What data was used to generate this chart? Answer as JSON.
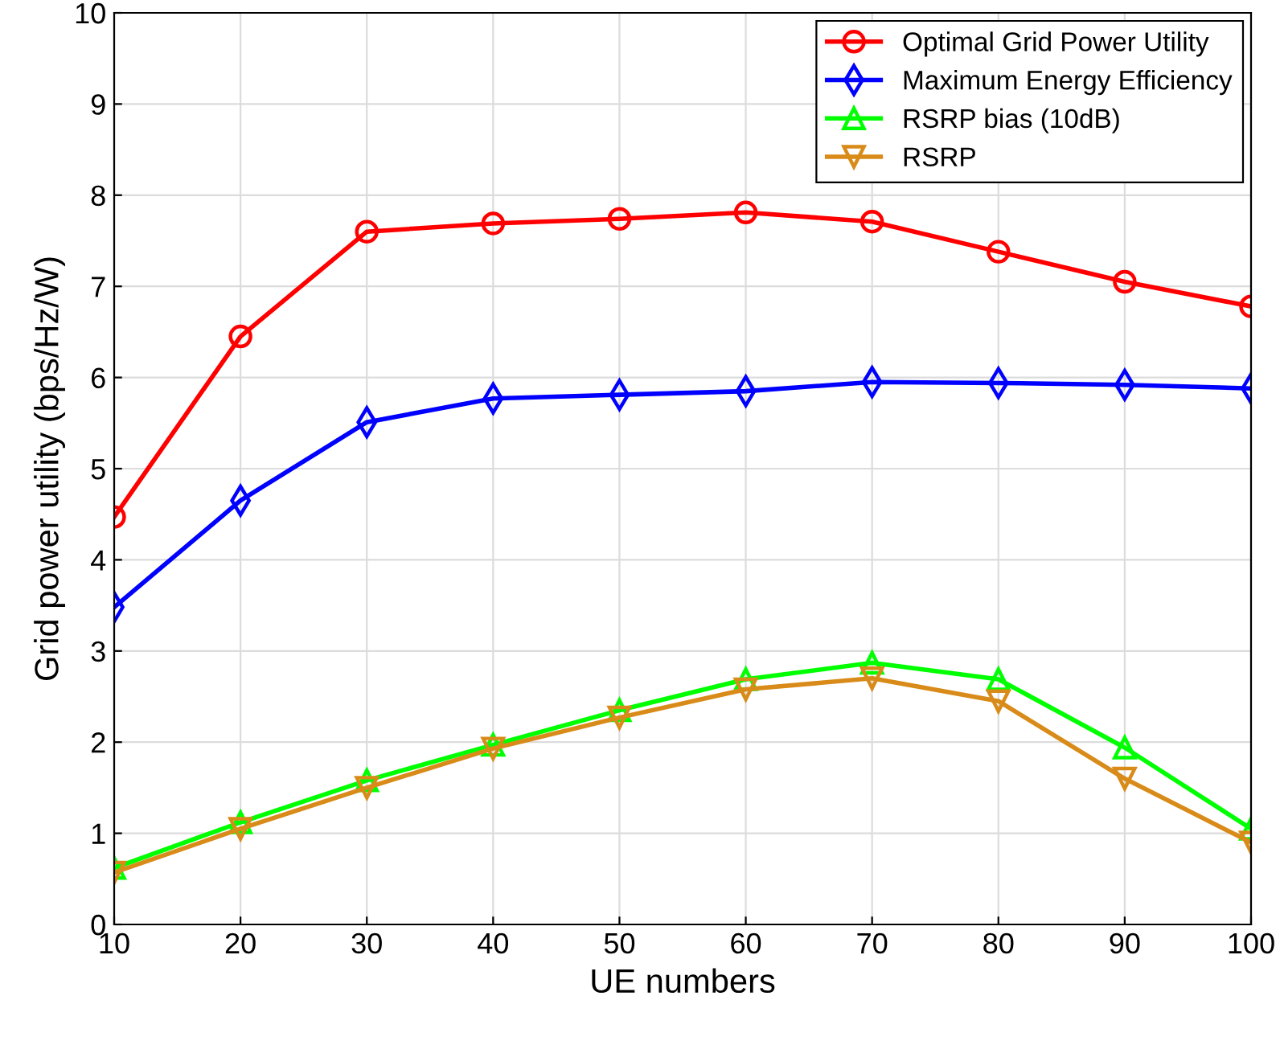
{
  "chart_data": {
    "type": "line",
    "xlabel": "UE numbers",
    "ylabel": "Grid power utility (bps/Hz/W)",
    "x": [
      10,
      20,
      30,
      40,
      50,
      60,
      70,
      80,
      90,
      100
    ],
    "series": [
      {
        "name": "Optimal Grid Power Utility",
        "color": "#ff0000",
        "marker": "circle",
        "values": [
          4.47,
          6.45,
          7.6,
          7.69,
          7.74,
          7.81,
          7.71,
          7.38,
          7.05,
          6.78
        ]
      },
      {
        "name": "Maximum Energy Efficiency",
        "color": "#0000ff",
        "marker": "diamond",
        "values": [
          3.48,
          4.65,
          5.51,
          5.77,
          5.81,
          5.85,
          5.95,
          5.94,
          5.92,
          5.88
        ]
      },
      {
        "name": "RSRP bias (10dB)",
        "color": "#00ff00",
        "marker": "triangle",
        "values": [
          0.62,
          1.12,
          1.58,
          1.97,
          2.35,
          2.69,
          2.87,
          2.69,
          1.94,
          1.05
        ]
      },
      {
        "name": "RSRP",
        "color": "#d98b19",
        "marker": "triangle-down",
        "values": [
          0.57,
          1.05,
          1.5,
          1.93,
          2.27,
          2.58,
          2.7,
          2.45,
          1.6,
          0.9
        ]
      }
    ],
    "xlim": [
      10,
      100
    ],
    "xticks": [
      10,
      20,
      30,
      40,
      50,
      60,
      70,
      80,
      90,
      100
    ],
    "ylim": [
      0,
      10
    ],
    "yticks": [
      0,
      1,
      2,
      3,
      4,
      5,
      6,
      7,
      8,
      9,
      10
    ],
    "grid": true,
    "legend": "top right",
    "line_style": "solid"
  }
}
